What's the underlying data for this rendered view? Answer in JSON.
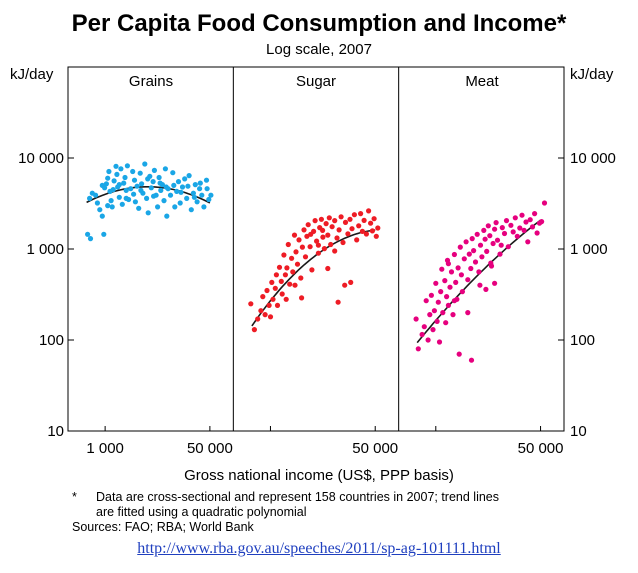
{
  "chart_data": {
    "type": "scatter",
    "title": "Per Capita Food Consumption and Income*",
    "subtitle": "Log scale, 2007",
    "ylabel": "kJ/day",
    "xlabel": "Gross national income (US$, PPP basis)",
    "y_scale": "log",
    "ylim": [
      10,
      100000
    ],
    "y_ticks": [
      10,
      100,
      1000,
      10000
    ],
    "y_tick_labels": [
      "10",
      "100",
      "1 000",
      "10 000"
    ],
    "x_scale": "log",
    "xlim": [
      250,
      120000
    ],
    "x_ticks": [
      1000,
      50000
    ],
    "x_tick_labels": [
      "1 000",
      "50 000"
    ],
    "grid": false,
    "colors": {
      "Grains": "#1aa6e6",
      "Sugar": "#ee1c25",
      "Meat": "#e6007e",
      "trend": "#1a1a1a"
    },
    "panels": [
      {
        "name": "Grains",
        "trend": {
          "x": [
            500,
            1000,
            3000,
            10000,
            30000,
            50000
          ],
          "y": [
            3200,
            4100,
            4700,
            4600,
            3800,
            3200
          ]
        },
        "points": [
          [
            520,
            1450
          ],
          [
            580,
            1300
          ],
          [
            560,
            3600
          ],
          [
            620,
            4100
          ],
          [
            700,
            3900
          ],
          [
            820,
            2700
          ],
          [
            900,
            2300
          ],
          [
            950,
            1450
          ],
          [
            980,
            4700
          ],
          [
            1050,
            5200
          ],
          [
            1100,
            6000
          ],
          [
            1150,
            7100
          ],
          [
            1200,
            4300
          ],
          [
            1250,
            3400
          ],
          [
            1300,
            2900
          ],
          [
            1400,
            5600
          ],
          [
            1500,
            8100
          ],
          [
            1550,
            6600
          ],
          [
            1600,
            4800
          ],
          [
            1700,
            3700
          ],
          [
            1800,
            7600
          ],
          [
            1900,
            3100
          ],
          [
            2000,
            5300
          ],
          [
            2100,
            6100
          ],
          [
            2200,
            4400
          ],
          [
            2300,
            8200
          ],
          [
            2400,
            3500
          ],
          [
            2600,
            4600
          ],
          [
            2800,
            7100
          ],
          [
            3000,
            5700
          ],
          [
            3100,
            3300
          ],
          [
            3300,
            4900
          ],
          [
            3500,
            2800
          ],
          [
            3700,
            6800
          ],
          [
            3900,
            5200
          ],
          [
            4100,
            4100
          ],
          [
            4400,
            8600
          ],
          [
            4700,
            3600
          ],
          [
            5000,
            2500
          ],
          [
            5300,
            6300
          ],
          [
            5600,
            4700
          ],
          [
            6000,
            5500
          ],
          [
            6300,
            7300
          ],
          [
            6700,
            3900
          ],
          [
            7100,
            2900
          ],
          [
            7500,
            6100
          ],
          [
            8000,
            4400
          ],
          [
            8500,
            5100
          ],
          [
            9000,
            3400
          ],
          [
            9500,
            7600
          ],
          [
            10000,
            2300
          ],
          [
            10500,
            4600
          ],
          [
            11500,
            3900
          ],
          [
            12500,
            6900
          ],
          [
            13500,
            2900
          ],
          [
            14500,
            4300
          ],
          [
            15500,
            5500
          ],
          [
            16500,
            3200
          ],
          [
            18000,
            4800
          ],
          [
            19500,
            5900
          ],
          [
            21000,
            3600
          ],
          [
            23000,
            6400
          ],
          [
            25000,
            2700
          ],
          [
            27000,
            4100
          ],
          [
            29000,
            5100
          ],
          [
            31000,
            3300
          ],
          [
            34000,
            4600
          ],
          [
            37000,
            3900
          ],
          [
            40000,
            2900
          ],
          [
            44000,
            5700
          ],
          [
            48000,
            3500
          ],
          [
            52000,
            3900
          ],
          [
            45000,
            4600
          ],
          [
            35000,
            5300
          ],
          [
            28000,
            3700
          ],
          [
            22000,
            4900
          ],
          [
            17000,
            4200
          ],
          [
            13000,
            5000
          ],
          [
            9800,
            4800
          ],
          [
            7800,
            5300
          ],
          [
            6100,
            3800
          ],
          [
            4900,
            5900
          ],
          [
            3800,
            4400
          ],
          [
            2900,
            4000
          ],
          [
            2200,
            3600
          ],
          [
            1700,
            5100
          ],
          [
            1350,
            4500
          ],
          [
            1100,
            3000
          ],
          [
            900,
            5000
          ],
          [
            750,
            3200
          ]
        ]
      },
      {
        "name": "Sugar",
        "trend": {
          "x": [
            500,
            1000,
            3000,
            10000,
            30000,
            50000
          ],
          "y": [
            140,
            280,
            600,
            1100,
            1550,
            1600
          ]
        },
        "points": [
          [
            480,
            250
          ],
          [
            550,
            130
          ],
          [
            620,
            170
          ],
          [
            700,
            210
          ],
          [
            750,
            300
          ],
          [
            820,
            190
          ],
          [
            880,
            350
          ],
          [
            950,
            240
          ],
          [
            1000,
            180
          ],
          [
            1050,
            430
          ],
          [
            1100,
            280
          ],
          [
            1200,
            370
          ],
          [
            1250,
            520
          ],
          [
            1300,
            240
          ],
          [
            1400,
            630
          ],
          [
            1500,
            440
          ],
          [
            1550,
            320
          ],
          [
            1650,
            860
          ],
          [
            1750,
            520
          ],
          [
            1850,
            620
          ],
          [
            1950,
            1120
          ],
          [
            2050,
            410
          ],
          [
            2200,
            790
          ],
          [
            2300,
            560
          ],
          [
            2450,
            1420
          ],
          [
            2600,
            930
          ],
          [
            2750,
            680
          ],
          [
            2900,
            1260
          ],
          [
            3100,
            480
          ],
          [
            3300,
            1050
          ],
          [
            3500,
            1620
          ],
          [
            3700,
            820
          ],
          [
            3900,
            1380
          ],
          [
            4100,
            1850
          ],
          [
            4400,
            1060
          ],
          [
            4700,
            590
          ],
          [
            5000,
            1560
          ],
          [
            5300,
            2050
          ],
          [
            5600,
            1220
          ],
          [
            6000,
            900
          ],
          [
            6300,
            1720
          ],
          [
            6700,
            2120
          ],
          [
            7100,
            1350
          ],
          [
            7500,
            1010
          ],
          [
            8000,
            1900
          ],
          [
            8500,
            1420
          ],
          [
            9000,
            2200
          ],
          [
            9500,
            1120
          ],
          [
            10000,
            1760
          ],
          [
            11000,
            2050
          ],
          [
            12000,
            1320
          ],
          [
            13000,
            1620
          ],
          [
            14000,
            2260
          ],
          [
            15000,
            1180
          ],
          [
            16500,
            1960
          ],
          [
            18000,
            1470
          ],
          [
            19500,
            2120
          ],
          [
            21000,
            1670
          ],
          [
            23000,
            2380
          ],
          [
            25000,
            1260
          ],
          [
            27000,
            1800
          ],
          [
            29000,
            2450
          ],
          [
            31000,
            1560
          ],
          [
            33000,
            2060
          ],
          [
            36000,
            1460
          ],
          [
            39000,
            2620
          ],
          [
            42000,
            1920
          ],
          [
            45000,
            1580
          ],
          [
            48000,
            2150
          ],
          [
            52000,
            1380
          ],
          [
            55000,
            1700
          ],
          [
            16000,
            400
          ],
          [
            20000,
            430
          ],
          [
            12500,
            260
          ],
          [
            8500,
            610
          ],
          [
            3200,
            290
          ],
          [
            2500,
            400
          ],
          [
            1800,
            280
          ],
          [
            11000,
            950
          ],
          [
            7000,
            1600
          ],
          [
            4500,
            1450
          ],
          [
            6000,
            1100
          ]
        ]
      },
      {
        "name": "Meat",
        "trend": {
          "x": [
            500,
            1000,
            3000,
            10000,
            30000,
            50000
          ],
          "y": [
            100,
            150,
            360,
            900,
            1600,
            2000
          ]
        },
        "points": [
          [
            480,
            170
          ],
          [
            520,
            80
          ],
          [
            600,
            115
          ],
          [
            650,
            140
          ],
          [
            700,
            270
          ],
          [
            750,
            100
          ],
          [
            800,
            190
          ],
          [
            850,
            310
          ],
          [
            900,
            130
          ],
          [
            950,
            210
          ],
          [
            1000,
            420
          ],
          [
            1050,
            160
          ],
          [
            1100,
            260
          ],
          [
            1150,
            95
          ],
          [
            1200,
            340
          ],
          [
            1250,
            600
          ],
          [
            1300,
            200
          ],
          [
            1400,
            450
          ],
          [
            1450,
            155
          ],
          [
            1500,
            300
          ],
          [
            1550,
            750
          ],
          [
            1600,
            240
          ],
          [
            1700,
            380
          ],
          [
            1800,
            560
          ],
          [
            1900,
            190
          ],
          [
            2000,
            870
          ],
          [
            2100,
            430
          ],
          [
            2200,
            280
          ],
          [
            2300,
            620
          ],
          [
            2500,
            1050
          ],
          [
            2600,
            520
          ],
          [
            2700,
            340
          ],
          [
            2900,
            780
          ],
          [
            3100,
            1200
          ],
          [
            3300,
            460
          ],
          [
            3500,
            880
          ],
          [
            3700,
            610
          ],
          [
            3900,
            1300
          ],
          [
            4100,
            960
          ],
          [
            4400,
            720
          ],
          [
            4700,
            1450
          ],
          [
            5000,
            560
          ],
          [
            5300,
            1100
          ],
          [
            5600,
            820
          ],
          [
            6000,
            1600
          ],
          [
            6300,
            1280
          ],
          [
            6700,
            940
          ],
          [
            7100,
            1800
          ],
          [
            7500,
            1400
          ],
          [
            8000,
            650
          ],
          [
            8500,
            1150
          ],
          [
            9000,
            1650
          ],
          [
            9500,
            1950
          ],
          [
            10000,
            1250
          ],
          [
            11000,
            880
          ],
          [
            12000,
            1720
          ],
          [
            13000,
            1480
          ],
          [
            14000,
            2050
          ],
          [
            15000,
            1060
          ],
          [
            16500,
            1820
          ],
          [
            18000,
            1540
          ],
          [
            19500,
            2200
          ],
          [
            21000,
            1380
          ],
          [
            23000,
            1700
          ],
          [
            25000,
            2350
          ],
          [
            27000,
            1600
          ],
          [
            29000,
            1980
          ],
          [
            31000,
            1200
          ],
          [
            34000,
            2100
          ],
          [
            37000,
            1750
          ],
          [
            40000,
            2450
          ],
          [
            44000,
            1500
          ],
          [
            48000,
            1920
          ],
          [
            52000,
            2000
          ],
          [
            58000,
            3200
          ],
          [
            2400,
            70
          ],
          [
            3800,
            60
          ],
          [
            6500,
            360
          ],
          [
            1600,
            690
          ],
          [
            9000,
            420
          ],
          [
            3300,
            200
          ],
          [
            2000,
            270
          ],
          [
            5200,
            400
          ],
          [
            7800,
            700
          ],
          [
            11500,
            1100
          ]
        ]
      }
    ]
  },
  "footnote": {
    "marker": "*",
    "line1": "Data are cross-sectional and represent 158 countries in 2007; trend lines",
    "line2": "are fitted using a quadratic polynomial"
  },
  "sources": "Sources: FAO; RBA; World Bank",
  "url": "http://www.rba.gov.au/speeches/2011/sp-ag-101111.html"
}
